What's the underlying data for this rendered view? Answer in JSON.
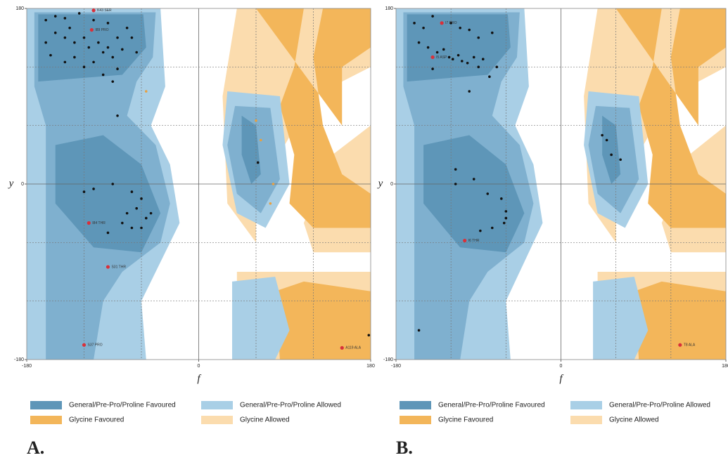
{
  "chart_data": [
    {
      "type": "scatter",
      "panel_label": "A.",
      "xlabel": "f",
      "ylabel": "y",
      "xlim": [
        -180,
        180
      ],
      "ylim": [
        -180,
        180
      ],
      "xticks": [
        -180,
        0,
        180
      ],
      "yticks": [
        -180,
        0,
        180
      ],
      "legend": [
        {
          "name": "General/Pre-Pro/Proline Favoured",
          "color": "#5e96b8"
        },
        {
          "name": "General/Pre-Pro/Proline Allowed",
          "color": "#a9cfe6"
        },
        {
          "name": "Glycine Favoured",
          "color": "#f3b65a"
        },
        {
          "name": "Glycine Allowed",
          "color": "#fbdcae"
        }
      ],
      "series": [
        {
          "color": "#111111",
          "x": [
            -160,
            -150,
            -140,
            -125,
            -110,
            -95,
            -75,
            -70,
            -150,
            -140,
            -130,
            -120,
            -115,
            -105,
            -100,
            -95,
            -90,
            -85,
            -80,
            -130,
            -140,
            -120,
            -110,
            -100,
            -85,
            -155,
            -90,
            -160,
            -135,
            -65,
            -85,
            -120,
            -110,
            -90,
            -70,
            -60,
            -65,
            -75,
            -80,
            -70,
            -55,
            -95,
            -60,
            -50,
            62,
            178
          ],
          "y": [
            168,
            172,
            170,
            175,
            168,
            165,
            160,
            150,
            155,
            150,
            145,
            150,
            140,
            145,
            135,
            140,
            130,
            150,
            138,
            130,
            125,
            120,
            125,
            112,
            118,
            132,
            105,
            145,
            160,
            135,
            70,
            -8,
            -5,
            0,
            -8,
            -15,
            -25,
            -30,
            -40,
            -45,
            -35,
            -50,
            -45,
            -30,
            22,
            -155
          ]
        },
        {
          "color": "#e8a040",
          "x": [
            -55,
            60,
            65,
            78,
            75
          ],
          "y": [
            95,
            65,
            45,
            0,
            -20
          ]
        },
        {
          "color": "#d9303a",
          "x": [
            -110,
            -112,
            -115,
            -95,
            -120,
            150
          ],
          "y": [
            178,
            158,
            -40,
            -85,
            -165,
            -168
          ],
          "labels": [
            "K43 SER",
            "I89 PRO",
            "I84 THR",
            "S31 THR",
            "S37 PRO",
            "A119 ALA"
          ]
        }
      ]
    },
    {
      "type": "scatter",
      "panel_label": "B.",
      "xlabel": "f",
      "ylabel": "y",
      "xlim": [
        -180,
        180
      ],
      "ylim": [
        -180,
        180
      ],
      "xticks": [
        -180,
        0,
        180
      ],
      "yticks": [
        -180,
        0,
        180
      ],
      "legend": [
        {
          "name": "General/Pre-Pro/Proline Favoured",
          "color": "#5e96b8"
        },
        {
          "name": "General/Pre-Pro/Proline Allowed",
          "color": "#a9cfe6"
        },
        {
          "name": "Glycine Favoured",
          "color": "#f3b65a"
        },
        {
          "name": "Glycine Allowed",
          "color": "#fbdcae"
        }
      ],
      "series": [
        {
          "color": "#111111",
          "x": [
            -160,
            -150,
            -140,
            -120,
            -110,
            -100,
            -90,
            -75,
            -155,
            -145,
            -135,
            -128,
            -122,
            -118,
            -112,
            -108,
            -102,
            -95,
            -90,
            -85,
            -70,
            -78,
            -100,
            -140,
            -115,
            -115,
            -95,
            -80,
            -65,
            -60,
            -60,
            -62,
            -75,
            -88,
            45,
            50,
            55,
            65,
            -155
          ],
          "y": [
            165,
            160,
            172,
            165,
            160,
            158,
            150,
            155,
            145,
            140,
            135,
            138,
            130,
            128,
            132,
            126,
            124,
            130,
            120,
            128,
            120,
            110,
            95,
            118,
            15,
            0,
            5,
            -10,
            -15,
            -28,
            -35,
            -40,
            -45,
            -48,
            50,
            45,
            30,
            25,
            -150
          ]
        },
        {
          "color": "#d9303a",
          "x": [
            -130,
            -140,
            -105,
            130
          ],
          "y": [
            165,
            130,
            -58,
            -165
          ],
          "labels": [
            "I7 PRO",
            "I5 ASP",
            "I6 THR",
            "T8 ALA"
          ]
        }
      ]
    }
  ]
}
